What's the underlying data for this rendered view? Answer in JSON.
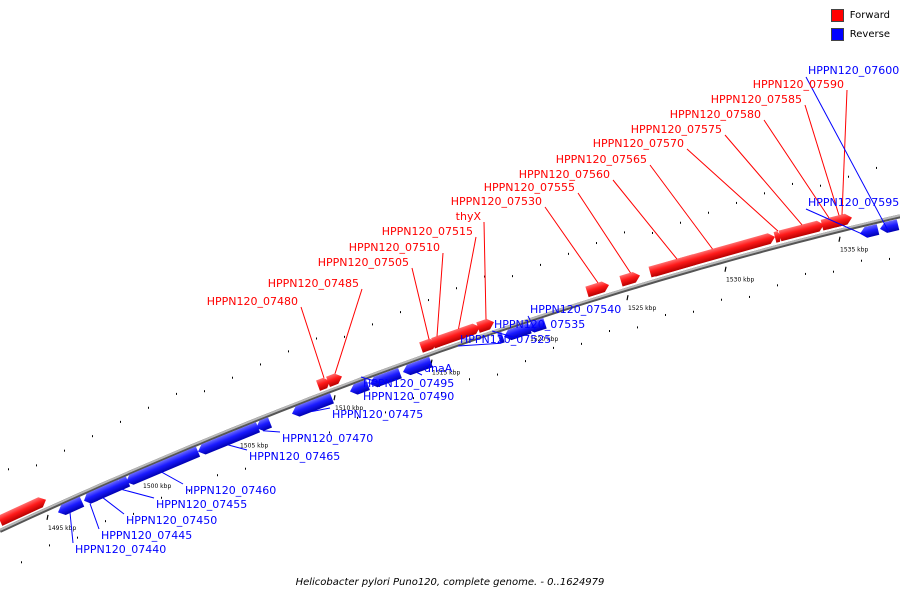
{
  "legend": {
    "forward_label": "Forward",
    "reverse_label": "Reverse",
    "forward_color": "#ff0000",
    "reverse_color": "#0000ff"
  },
  "caption": "Helicobacter pylori Puno120, complete genome. - 0..1624979",
  "axis": {
    "kbp_ticks": [
      "1495 kbp",
      "1500 kbp",
      "1505 kbp",
      "1510 kbp",
      "1515 kbp",
      "1520 kbp",
      "1525 kbp",
      "1530 kbp",
      "1535 kbp"
    ]
  },
  "genes": [
    {
      "label": "",
      "strand": "forward"
    },
    {
      "label": "HPPN120_07440",
      "strand": "reverse"
    },
    {
      "label": "HPPN120_07445",
      "strand": "reverse"
    },
    {
      "label": "HPPN120_07450",
      "strand": "reverse"
    },
    {
      "label": "HPPN120_07455",
      "strand": "reverse"
    },
    {
      "label": "HPPN120_07460",
      "strand": "reverse"
    },
    {
      "label": "HPPN120_07465",
      "strand": "reverse"
    },
    {
      "label": "HPPN120_07470",
      "strand": "reverse"
    },
    {
      "label": "HPPN120_07475",
      "strand": "reverse"
    },
    {
      "label": "HPPN120_07480",
      "strand": "forward"
    },
    {
      "label": "HPPN120_07485",
      "strand": "forward"
    },
    {
      "label": "HPPN120_07490",
      "strand": "reverse"
    },
    {
      "label": "HPPN120_07495",
      "strand": "reverse"
    },
    {
      "label": "dnaA",
      "strand": "reverse"
    },
    {
      "label": "HPPN120_07505",
      "strand": "forward"
    },
    {
      "label": "HPPN120_07510",
      "strand": "forward"
    },
    {
      "label": "HPPN120_07515",
      "strand": "forward"
    },
    {
      "label": "thyX",
      "strand": "forward"
    },
    {
      "label": "HPPN120_07525",
      "strand": "reverse"
    },
    {
      "label": "HPPN120_07530",
      "strand": "forward"
    },
    {
      "label": "HPPN120_07535",
      "strand": "reverse"
    },
    {
      "label": "HPPN120_07540",
      "strand": "reverse"
    },
    {
      "label": "HPPN120_07555",
      "strand": "forward"
    },
    {
      "label": "HPPN120_07560",
      "strand": "forward"
    },
    {
      "label": "HPPN120_07565",
      "strand": "forward"
    },
    {
      "label": "HPPN120_07570",
      "strand": "forward"
    },
    {
      "label": "HPPN120_07575",
      "strand": "forward"
    },
    {
      "label": "HPPN120_07580",
      "strand": "forward"
    },
    {
      "label": "HPPN120_07585",
      "strand": "forward"
    },
    {
      "label": "HPPN120_07590",
      "strand": "forward"
    },
    {
      "label": "HPPN120_07595",
      "strand": "reverse"
    },
    {
      "label": "HPPN120_07600",
      "strand": "reverse"
    }
  ]
}
